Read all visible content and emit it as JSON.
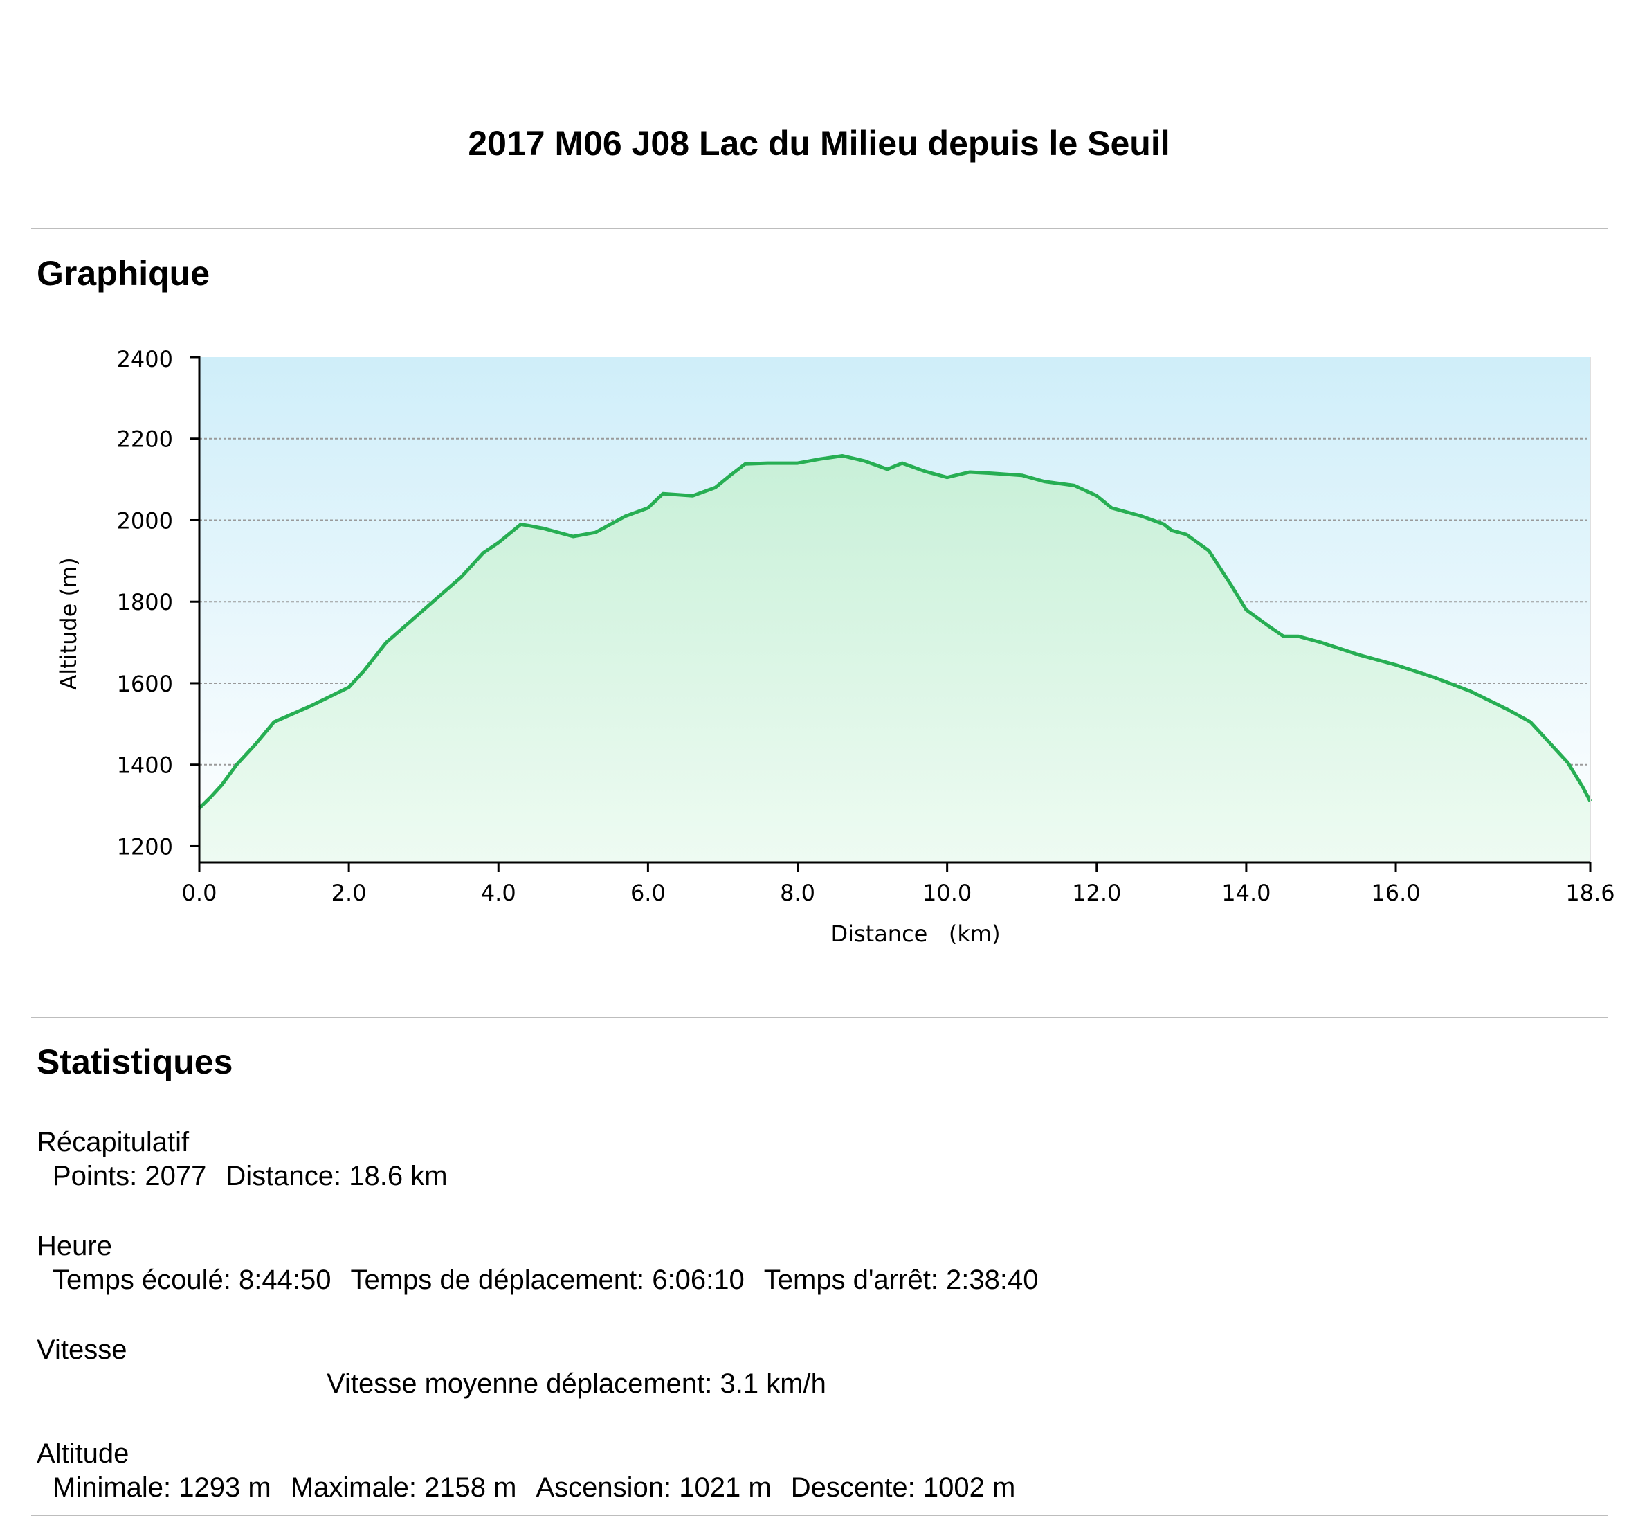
{
  "title": "2017 M06 J08 Lac du Milieu depuis le Seuil",
  "sections": {
    "chart_heading": "Graphique",
    "stats_heading": "Statistiques"
  },
  "colors": {
    "line": "#27ae53",
    "sky_top": "#cfeef9",
    "sky_bottom": "#ffffff",
    "fill_top": "#c8f0d8",
    "fill_bottom": "#eefbf2",
    "grid": "#9a9a9a"
  },
  "chart_data": {
    "type": "area",
    "xlabel": "Distance   (km)",
    "ylabel": "Altitude (m)",
    "xlim": [
      0,
      18.6
    ],
    "ylim": [
      1160,
      2400
    ],
    "x_ticks": [
      "0.0",
      "2.0",
      "4.0",
      "6.0",
      "8.0",
      "10.0",
      "12.0",
      "14.0",
      "16.0",
      "18.6"
    ],
    "x_tick_values": [
      0,
      2,
      4,
      6,
      8,
      10,
      12,
      14,
      16,
      18.6
    ],
    "y_ticks": [
      "1200",
      "1400",
      "1600",
      "1800",
      "2000",
      "2200",
      "2400"
    ],
    "y_tick_values": [
      1200,
      1400,
      1600,
      1800,
      2000,
      2200,
      2400
    ],
    "grid": true,
    "series": [
      {
        "x": [
          0.0,
          0.15,
          0.3,
          0.5,
          0.75,
          1.0,
          1.5,
          2.0,
          2.2,
          2.5,
          3.0,
          3.5,
          3.8,
          4.0,
          4.3,
          4.6,
          5.0,
          5.3,
          5.7,
          6.0,
          6.2,
          6.6,
          6.9,
          7.1,
          7.3,
          7.6,
          8.0,
          8.3,
          8.6,
          8.9,
          9.2,
          9.4,
          9.7,
          10.0,
          10.3,
          10.6,
          11.0,
          11.3,
          11.7,
          12.0,
          12.2,
          12.6,
          12.9,
          13.0,
          13.2,
          13.5,
          13.8,
          14.0,
          14.3,
          14.5,
          14.7,
          15.0,
          15.5,
          16.0,
          16.5,
          17.0,
          17.5,
          17.8,
          18.0,
          18.3,
          18.5,
          18.6
        ],
        "y": [
          1293,
          1320,
          1350,
          1400,
          1450,
          1505,
          1545,
          1590,
          1630,
          1700,
          1780,
          1860,
          1920,
          1945,
          1990,
          1980,
          1960,
          1970,
          2010,
          2030,
          2065,
          2060,
          2080,
          2110,
          2138,
          2140,
          2140,
          2150,
          2158,
          2145,
          2125,
          2140,
          2120,
          2105,
          2118,
          2115,
          2110,
          2095,
          2085,
          2060,
          2030,
          2010,
          1990,
          1975,
          1965,
          1925,
          1840,
          1780,
          1740,
          1715,
          1715,
          1700,
          1670,
          1645,
          1615,
          1580,
          1535,
          1505,
          1465,
          1405,
          1345,
          1310
        ]
      }
    ]
  },
  "stats": {
    "recap": {
      "heading": "Récapitulatif",
      "points": "Points: 2077",
      "distance": "Distance: 18.6 km"
    },
    "heure": {
      "heading": "Heure",
      "elapsed": "Temps écoulé: 8:44:50",
      "moving": "Temps de déplacement: 6:06:10",
      "stopped": "Temps d'arrêt: 2:38:40"
    },
    "vitesse": {
      "heading": "Vitesse",
      "moving_avg": "Vitesse moyenne déplacement: 3.1 km/h"
    },
    "altitude": {
      "heading": "Altitude",
      "min": "Minimale: 1293 m",
      "max": "Maximale: 2158 m",
      "ascent": "Ascension: 1021 m",
      "descent": "Descente: 1002 m"
    }
  }
}
